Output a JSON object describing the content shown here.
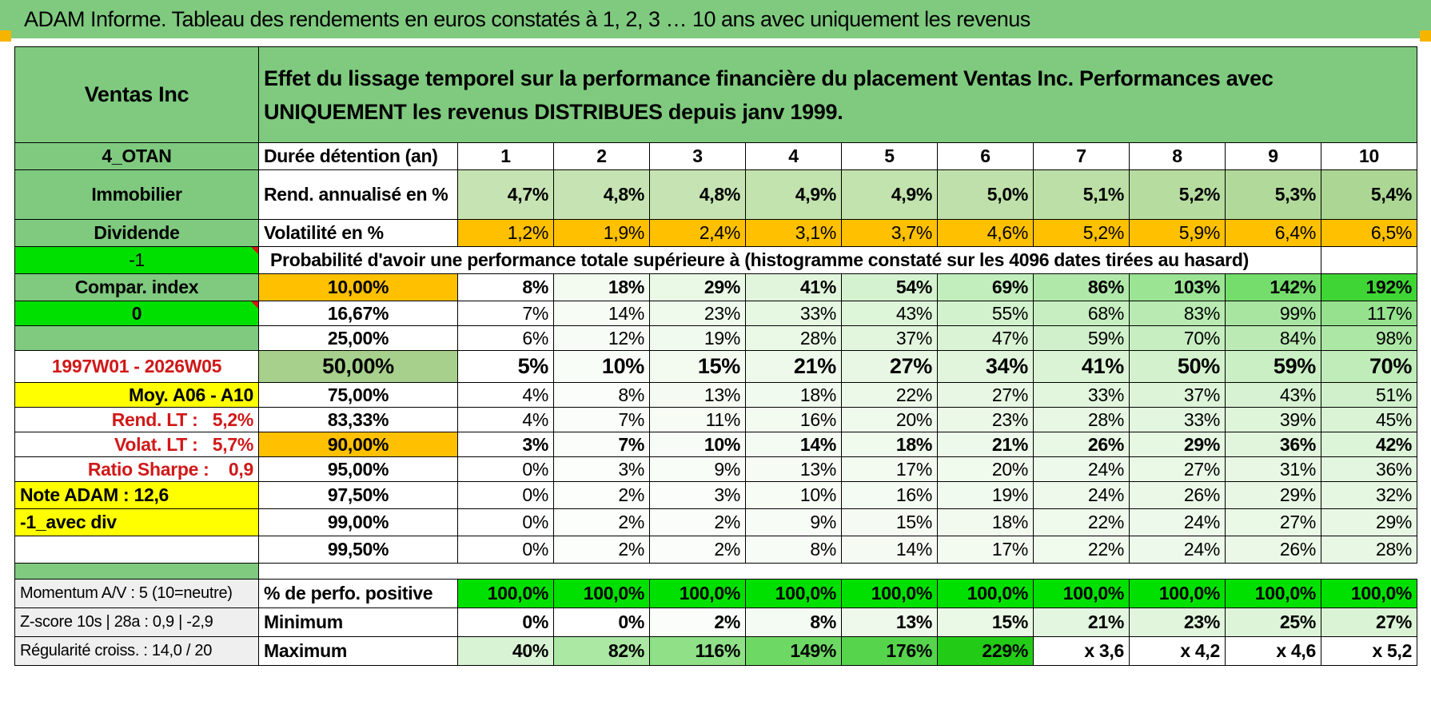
{
  "banner_title": "ADAM Informe. Tableau des rendements en euros constatés à 1, 2, 3 … 10 ans avec uniquement les revenus",
  "header": {
    "company": "Ventas Inc",
    "description": "Effet du lissage temporel sur la performance financière du placement Ventas Inc. Performances avec UNIQUEMENT les revenus DISTRIBUES depuis janv 1999."
  },
  "left": {
    "code": "4_OTAN",
    "sector": "Immobilier",
    "mode": "Dividende",
    "minus_one": "-1",
    "compar": "Compar. index",
    "zero": "0",
    "period": "1997W01 - 2026W05",
    "moy": "Moy. A06 - A10",
    "rend_lt_label": "Rend. LT :",
    "rend_lt_value": "5,2%",
    "volat_lt_label": "Volat. LT :",
    "volat_lt_value": "5,7%",
    "sharpe_label": "Ratio Sharpe :",
    "sharpe_value": "0,9",
    "note": "Note ADAM : 12,6",
    "avec_div": "-1_avec div",
    "momentum": "Momentum A/V : 5 (10=neutre)",
    "zscore": "Z-score 10s | 28a : 0,9 | -2,9",
    "regularite": "Régularité croiss. : 14,0 / 20"
  },
  "row_labels": {
    "duree": "Durée détention (an)",
    "rend": "Rend. annualisé en %",
    "vol": "Volatilité en %",
    "proba": "Probabilité d'avoir une performance totale supérieure à (histogramme constaté sur les 4096 dates tirées au hasard)",
    "positive": "% de perfo. positive",
    "minimum": "Minimum",
    "maximum": "Maximum"
  },
  "years": [
    "1",
    "2",
    "3",
    "4",
    "5",
    "6",
    "7",
    "8",
    "9",
    "10"
  ],
  "rend": [
    "4,7%",
    "4,8%",
    "4,8%",
    "4,9%",
    "4,9%",
    "5,0%",
    "5,1%",
    "5,2%",
    "5,3%",
    "5,4%"
  ],
  "vol": [
    "1,2%",
    "1,9%",
    "2,4%",
    "3,1%",
    "3,7%",
    "4,6%",
    "5,2%",
    "5,9%",
    "6,4%",
    "6,5%"
  ],
  "quantiles": [
    {
      "p": "10,00%",
      "v": [
        "8%",
        "18%",
        "29%",
        "41%",
        "54%",
        "69%",
        "86%",
        "103%",
        "142%",
        "192%"
      ]
    },
    {
      "p": "16,67%",
      "v": [
        "7%",
        "14%",
        "23%",
        "33%",
        "43%",
        "55%",
        "68%",
        "83%",
        "99%",
        "117%"
      ]
    },
    {
      "p": "25,00%",
      "v": [
        "6%",
        "12%",
        "19%",
        "28%",
        "37%",
        "47%",
        "59%",
        "70%",
        "84%",
        "98%"
      ]
    },
    {
      "p": "50,00%",
      "v": [
        "5%",
        "10%",
        "15%",
        "21%",
        "27%",
        "34%",
        "41%",
        "50%",
        "59%",
        "70%"
      ]
    },
    {
      "p": "75,00%",
      "v": [
        "4%",
        "8%",
        "13%",
        "18%",
        "22%",
        "27%",
        "33%",
        "37%",
        "43%",
        "51%"
      ]
    },
    {
      "p": "83,33%",
      "v": [
        "4%",
        "7%",
        "11%",
        "16%",
        "20%",
        "23%",
        "28%",
        "33%",
        "39%",
        "45%"
      ]
    },
    {
      "p": "90,00%",
      "v": [
        "3%",
        "7%",
        "10%",
        "14%",
        "18%",
        "21%",
        "26%",
        "29%",
        "36%",
        "42%"
      ]
    },
    {
      "p": "95,00%",
      "v": [
        "0%",
        "3%",
        "9%",
        "13%",
        "17%",
        "20%",
        "24%",
        "27%",
        "31%",
        "36%"
      ]
    },
    {
      "p": "97,50%",
      "v": [
        "0%",
        "2%",
        "3%",
        "10%",
        "16%",
        "19%",
        "24%",
        "26%",
        "29%",
        "32%"
      ]
    },
    {
      "p": "99,00%",
      "v": [
        "0%",
        "2%",
        "2%",
        "9%",
        "15%",
        "18%",
        "22%",
        "24%",
        "27%",
        "29%"
      ]
    },
    {
      "p": "99,50%",
      "v": [
        "0%",
        "2%",
        "2%",
        "8%",
        "14%",
        "17%",
        "22%",
        "24%",
        "26%",
        "28%"
      ]
    }
  ],
  "positive": [
    "100,0%",
    "100,0%",
    "100,0%",
    "100,0%",
    "100,0%",
    "100,0%",
    "100,0%",
    "100,0%",
    "100,0%",
    "100,0%"
  ],
  "minimum": [
    "0%",
    "0%",
    "2%",
    "8%",
    "13%",
    "15%",
    "21%",
    "23%",
    "25%",
    "27%"
  ],
  "maximum": [
    "40%",
    "82%",
    "116%",
    "149%",
    "176%",
    "229%",
    "x 3,6",
    "x 4,2",
    "x 4,6",
    "x 5,2"
  ],
  "colors": {
    "banner": "#7fca7f",
    "bright_green": "#00e000",
    "orange": "#ffc000",
    "yellow": "#ffff00",
    "red_text": "#d01818"
  }
}
